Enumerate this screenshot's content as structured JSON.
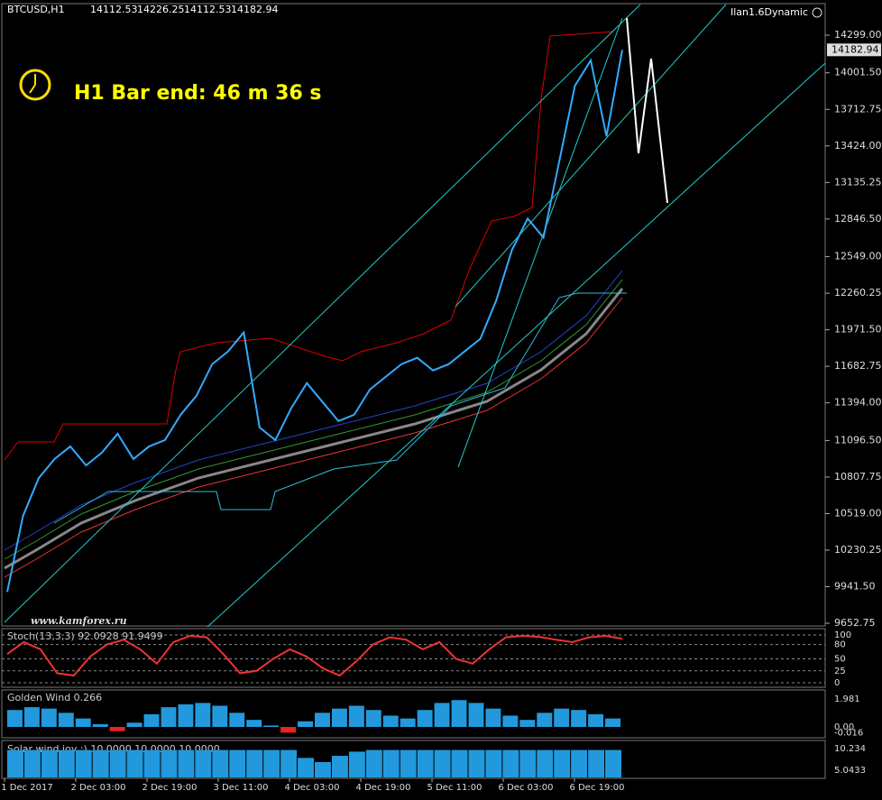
{
  "header": {
    "symbol": "BTCUSD,H1",
    "open": "14112.53",
    "high": "14226.25",
    "low": "14112.53",
    "close": "14182.94",
    "expert": "Ilan1.6Dynamic"
  },
  "timer_text": "H1 Bar end: 46 m 36 s",
  "watermark": "www.kamforex.ru",
  "price_axis": {
    "ticks": [
      {
        "value": 14299,
        "label": "14299.00"
      },
      {
        "value": 14001.5,
        "label": "14001.50"
      },
      {
        "value": 13712.75,
        "label": "13712.75"
      },
      {
        "value": 13424,
        "label": "13424.00"
      },
      {
        "value": 13135.25,
        "label": "13135.25"
      },
      {
        "value": 12846.5,
        "label": "12846.50"
      },
      {
        "value": 12549,
        "label": "12549.00"
      },
      {
        "value": 12260.25,
        "label": "12260.25"
      },
      {
        "value": 11971.5,
        "label": "11971.50"
      },
      {
        "value": 11682.75,
        "label": "11682.75"
      },
      {
        "value": 11394,
        "label": "11394.00"
      },
      {
        "value": 11096.5,
        "label": "11096.50"
      },
      {
        "value": 10807.75,
        "label": "10807.75"
      },
      {
        "value": 10519,
        "label": "10519.00"
      },
      {
        "value": 10230.25,
        "label": "10230.25"
      },
      {
        "value": 9941.5,
        "label": "9941.50"
      },
      {
        "value": 9652.75,
        "label": "9652.75"
      }
    ],
    "current": {
      "value": 14182.94,
      "label": "14182.94"
    }
  },
  "price_closes": [
    9900,
    10500,
    10800,
    10950,
    11050,
    10900,
    11000,
    11150,
    10950,
    11050,
    11100,
    11300,
    11450,
    11700,
    11800,
    11950,
    11200,
    11100,
    11350,
    11550,
    11400,
    11250,
    11300,
    11500,
    11600,
    11700,
    11750,
    11650,
    11700,
    11800,
    11900,
    12200,
    12600,
    12850,
    12700,
    13300,
    13900,
    14100,
    13500,
    14182.94
  ],
  "stoch": {
    "label": "Stoch(13,3,3) 92.0928 91.9499",
    "ticks": [
      100,
      80,
      50,
      25,
      0
    ],
    "values": [
      60,
      85,
      70,
      20,
      15,
      55,
      80,
      90,
      70,
      40,
      85,
      98,
      95,
      60,
      20,
      25,
      50,
      70,
      55,
      30,
      15,
      45,
      80,
      95,
      90,
      70,
      85,
      50,
      40,
      70,
      95,
      98,
      96,
      90,
      85,
      95,
      98,
      92
    ]
  },
  "golden_wind": {
    "label": "Golden Wind 0.266",
    "ticks": [
      {
        "value": 1.981,
        "label": "1.981"
      },
      {
        "value": 0,
        "label": "0.00"
      },
      {
        "value": -0.016,
        "label": "-0.016"
      }
    ],
    "values": [
      1.2,
      1.4,
      1.3,
      1.0,
      0.6,
      0.2,
      -0.3,
      0.3,
      0.9,
      1.4,
      1.6,
      1.7,
      1.5,
      1.0,
      0.5,
      0.1,
      -0.4,
      0.4,
      1.0,
      1.3,
      1.5,
      1.2,
      0.8,
      0.6,
      1.2,
      1.7,
      1.9,
      1.7,
      1.3,
      0.8,
      0.5,
      1.0,
      1.3,
      1.2,
      0.9,
      0.6
    ]
  },
  "solar_wind": {
    "label": "Solar wind joy :) 10.0000 10.0000 10.0000",
    "ticks": [
      {
        "value": 10.234,
        "label": "10.234"
      },
      {
        "value": 5.0433,
        "label": "5.0433"
      }
    ],
    "values": [
      9.9,
      9.9,
      9.9,
      9.9,
      9.9,
      9.9,
      9.9,
      9.9,
      9.9,
      9.9,
      9.9,
      9.9,
      9.9,
      9.9,
      9.9,
      9.9,
      9.9,
      8.0,
      7.0,
      8.5,
      9.5,
      9.9,
      9.9,
      9.9,
      9.9,
      9.9,
      9.9,
      9.9,
      9.9,
      9.9,
      9.9,
      9.9,
      9.9,
      9.9,
      9.9,
      9.9
    ]
  },
  "time_axis": [
    "1 Dec 2017",
    "2 Dec 03:00",
    "2 Dec 19:00",
    "3 Dec 11:00",
    "4 Dec 03:00",
    "4 Dec 19:00",
    "5 Dec 11:00",
    "6 Dec 03:00",
    "6 Dec 19:00"
  ]
}
